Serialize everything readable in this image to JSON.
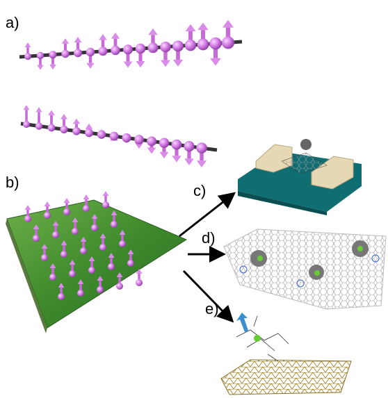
{
  "panels": {
    "a": "a)",
    "b": "b)",
    "c": "c)",
    "d": "d)",
    "e": "e)"
  }
}
